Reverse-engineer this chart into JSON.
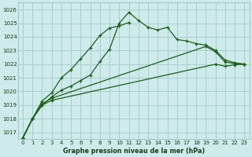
{
  "title": "Graphe pression niveau de la mer (hPa)",
  "background_color": "#ceeaea",
  "grid_color": "#aacece",
  "line_color": "#1a5e1a",
  "xlim": [
    -0.5,
    23.5
  ],
  "ylim": [
    1016.5,
    1026.5
  ],
  "xtick_labels": [
    "0",
    "1",
    "2",
    "3",
    "4",
    "5",
    "6",
    "7",
    "8",
    "9",
    "10",
    "11",
    "12",
    "13",
    "14",
    "15",
    "16",
    "17",
    "18",
    "19",
    "20",
    "21",
    "22",
    "23"
  ],
  "ytick_labels": [
    "1017",
    "1018",
    "1019",
    "1020",
    "1021",
    "1022",
    "1023",
    "1024",
    "1025",
    "1026"
  ],
  "ytick_vals": [
    1017,
    1018,
    1019,
    1020,
    1021,
    1022,
    1023,
    1024,
    1025,
    1026
  ],
  "xtick_vals": [
    0,
    1,
    2,
    3,
    4,
    5,
    6,
    7,
    8,
    9,
    10,
    11,
    12,
    13,
    14,
    15,
    16,
    17,
    18,
    19,
    20,
    21,
    22,
    23
  ],
  "series": [
    {
      "segments": [
        {
          "x": [
            0,
            1,
            2,
            3,
            4,
            5,
            6,
            7,
            8,
            9,
            10,
            11,
            12,
            13,
            14,
            15,
            16,
            17,
            18,
            19,
            20,
            21,
            22,
            23
          ],
          "y": [
            1016.6,
            1018.0,
            1019.0,
            1019.6,
            1020.1,
            1020.4,
            1020.8,
            1021.2,
            1022.2,
            1023.1,
            1025.0,
            1025.8,
            1025.2,
            1024.7,
            1024.5,
            1024.7,
            1023.8,
            1023.7,
            1023.5,
            1023.4,
            1023.0,
            1022.3,
            1022.1,
            1022.0
          ]
        }
      ]
    },
    {
      "segments": [
        {
          "x": [
            0,
            1,
            2,
            3,
            4,
            5,
            6,
            7,
            8,
            9,
            10,
            11
          ],
          "y": [
            1016.6,
            1018.0,
            1019.3,
            1019.9,
            1021.0,
            1021.6,
            1022.4,
            1023.2,
            1024.1,
            1024.65,
            1024.8,
            1025.05
          ]
        }
      ]
    },
    {
      "segments": [
        {
          "x": [
            0,
            1,
            2,
            3
          ],
          "y": [
            1016.6,
            1018.0,
            1019.1,
            1019.5
          ]
        },
        {
          "x": [
            19,
            20,
            21,
            22,
            23
          ],
          "y": [
            1023.3,
            1022.9,
            1022.15,
            1022.05,
            1022.0
          ]
        }
      ]
    },
    {
      "segments": [
        {
          "x": [
            0,
            1,
            2,
            3
          ],
          "y": [
            1016.6,
            1018.0,
            1019.0,
            1019.35
          ]
        },
        {
          "x": [
            20,
            21,
            22,
            23
          ],
          "y": [
            1022.0,
            1021.85,
            1021.95,
            1022.0
          ]
        }
      ]
    }
  ]
}
